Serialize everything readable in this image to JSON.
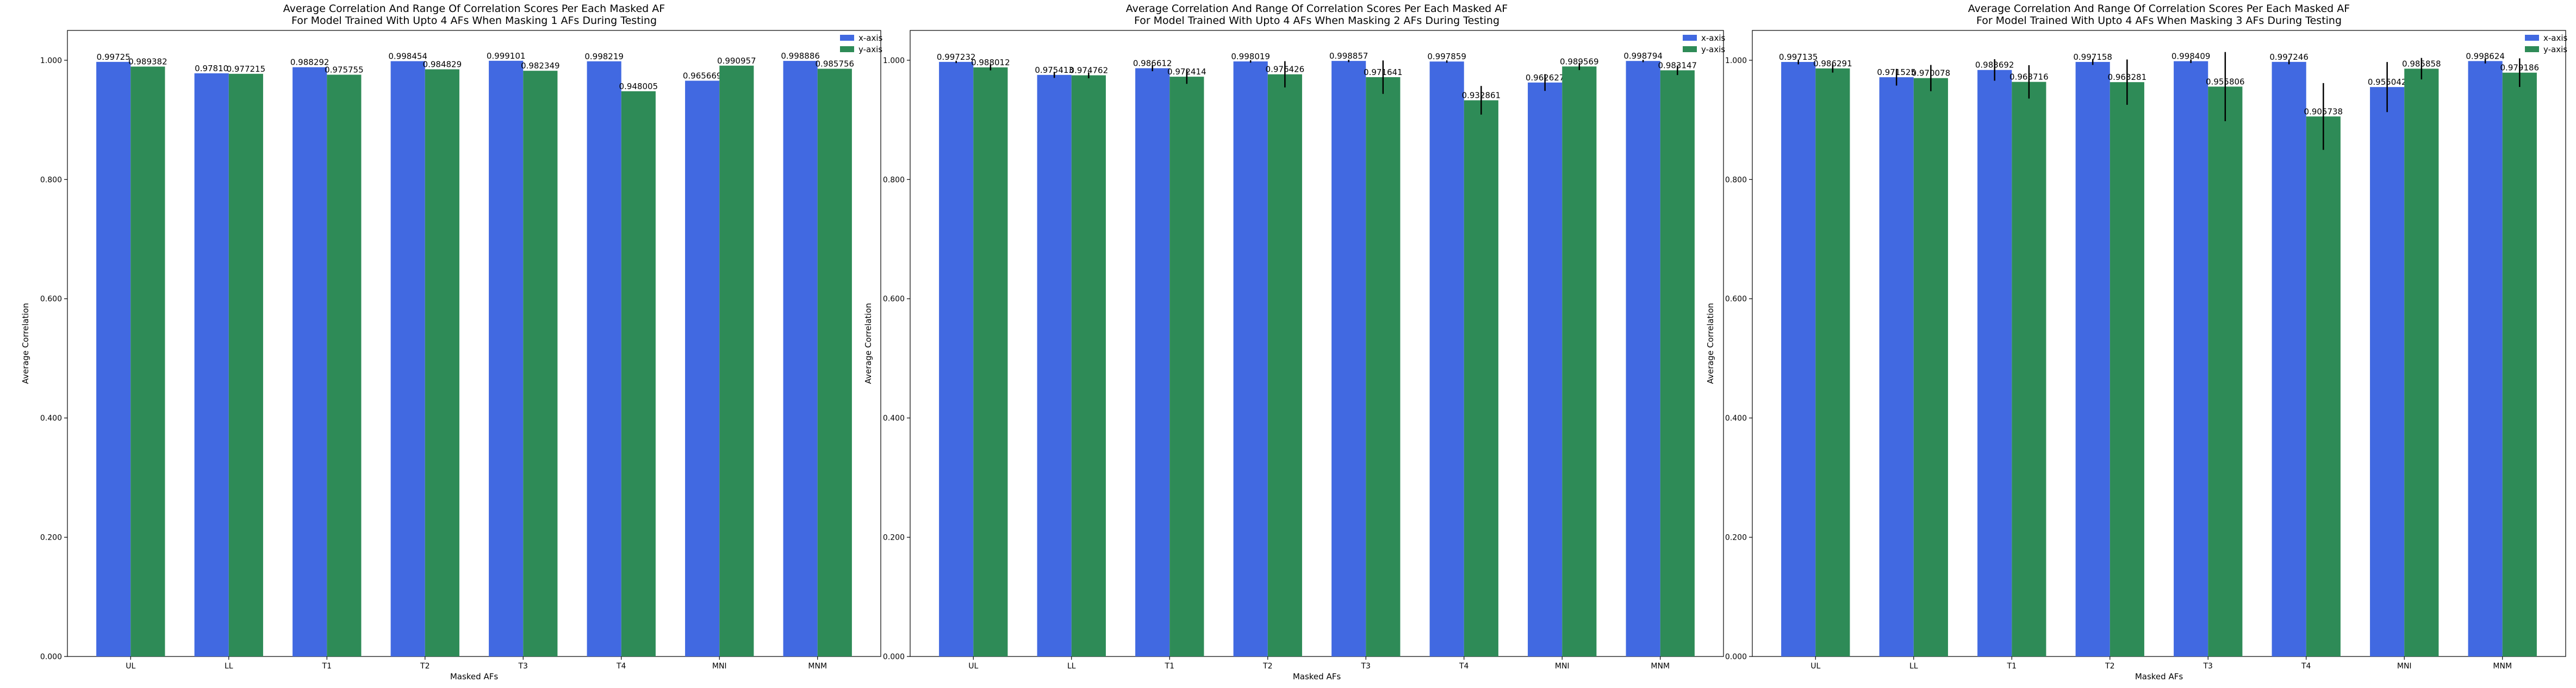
{
  "chart_data": [
    {
      "type": "bar",
      "title": "Average Correlation And Range Of Correlation Scores Per Each Masked AF",
      "subtitle": "For Model Trained With Upto 4 AFs When Masking 1 AFs During Testing",
      "xlabel": "Masked AFs",
      "ylabel": "Average Correlation",
      "ylim": [
        0,
        1.05
      ],
      "yticks": [
        "0.000",
        "0.200",
        "0.400",
        "0.600",
        "0.800",
        "1.000"
      ],
      "legend_position": "top-right",
      "categories": [
        "UL",
        "LL",
        "T1",
        "T2",
        "T3",
        "T4",
        "MNI",
        "MNM"
      ],
      "series": [
        {
          "name": "x-axis",
          "color": "#4169E1",
          "values": [
            0.99725,
            0.9781,
            0.988292,
            0.998454,
            0.999101,
            0.998219,
            0.965669,
            0.998886
          ],
          "labels": [
            "0.99725",
            "0.97810",
            "0.988292",
            "0.998454",
            "0.999101",
            "0.998219",
            "0.965669",
            "0.998886"
          ],
          "errors": [
            0,
            0,
            0,
            0,
            0,
            0,
            0,
            0
          ]
        },
        {
          "name": "y-axis",
          "color": "#2E8B57",
          "values": [
            0.989382,
            0.977215,
            0.975755,
            0.984829,
            0.982349,
            0.948005,
            0.990957,
            0.985756
          ],
          "labels": [
            "0.989382",
            "0.977215",
            "0.975755",
            "0.984829",
            "0.982349",
            "0.948005",
            "0.990957",
            "0.985756"
          ],
          "errors": [
            0,
            0,
            0,
            0,
            0,
            0,
            0,
            0
          ]
        }
      ]
    },
    {
      "type": "bar",
      "title": "Average Correlation And Range Of Correlation Scores Per Each Masked AF",
      "subtitle": "For Model Trained With Upto 4 AFs When Masking 2 AFs During Testing",
      "xlabel": "Masked AFs",
      "ylabel": "Average Correlation",
      "ylim": [
        0,
        1.05
      ],
      "yticks": [
        "0.000",
        "0.200",
        "0.400",
        "0.600",
        "0.800",
        "1.000"
      ],
      "legend_position": "top-right",
      "categories": [
        "UL",
        "LL",
        "T1",
        "T2",
        "T3",
        "T4",
        "MNI",
        "MNM"
      ],
      "series": [
        {
          "name": "x-axis",
          "color": "#4169E1",
          "values": [
            0.997232,
            0.975413,
            0.986612,
            0.998019,
            0.998857,
            0.997859,
            0.962627,
            0.998794
          ],
          "labels": [
            "0.997232",
            "0.975413",
            "0.986612",
            "0.998019",
            "0.998857",
            "0.997859",
            "0.962627",
            "0.998794"
          ],
          "errors": [
            0.002,
            0.005,
            0.005,
            0.002,
            0.002,
            0.002,
            0.014,
            0.002
          ]
        },
        {
          "name": "y-axis",
          "color": "#2E8B57",
          "values": [
            0.988012,
            0.974762,
            0.972414,
            0.976426,
            0.971641,
            0.932861,
            0.989569,
            0.983147
          ],
          "labels": [
            "0.988012",
            "0.974762",
            "0.972414",
            "0.976426",
            "0.971641",
            "0.932861",
            "0.989569",
            "0.983147"
          ],
          "errors": [
            0.005,
            0.005,
            0.012,
            0.022,
            0.028,
            0.024,
            0.006,
            0.008
          ]
        }
      ]
    },
    {
      "type": "bar",
      "title": "Average Correlation And Range Of Correlation Scores Per Each Masked AF",
      "subtitle": "For Model Trained With Upto 4 AFs When Masking 3 AFs During Testing",
      "xlabel": "Masked AFs",
      "ylabel": "Average Correlation",
      "ylim": [
        0,
        1.05
      ],
      "yticks": [
        "0.000",
        "0.200",
        "0.400",
        "0.600",
        "0.800",
        "1.000"
      ],
      "legend_position": "top-right",
      "categories": [
        "UL",
        "LL",
        "T1",
        "T2",
        "T3",
        "T4",
        "MNI",
        "MNM"
      ],
      "series": [
        {
          "name": "x-axis",
          "color": "#4169E1",
          "values": [
            0.997135,
            0.971525,
            0.983692,
            0.997158,
            0.998409,
            0.997246,
            0.955042,
            0.998624
          ],
          "labels": [
            "0.997135",
            "0.971525",
            "0.983692",
            "0.997158",
            "0.998409",
            "0.997246",
            "0.955042",
            "0.998624"
          ],
          "errors": [
            0.004,
            0.014,
            0.018,
            0.005,
            0.003,
            0.004,
            0.042,
            0.004
          ]
        },
        {
          "name": "y-axis",
          "color": "#2E8B57",
          "values": [
            0.986291,
            0.970078,
            0.963716,
            0.963281,
            0.955806,
            0.905738,
            0.985858,
            0.979186
          ],
          "labels": [
            "0.986291",
            "0.970078",
            "0.963716",
            "0.963281",
            "0.955806",
            "0.905738",
            "0.985858",
            "0.979186"
          ],
          "errors": [
            0.007,
            0.022,
            0.028,
            0.038,
            0.058,
            0.056,
            0.018,
            0.024
          ]
        }
      ]
    }
  ]
}
